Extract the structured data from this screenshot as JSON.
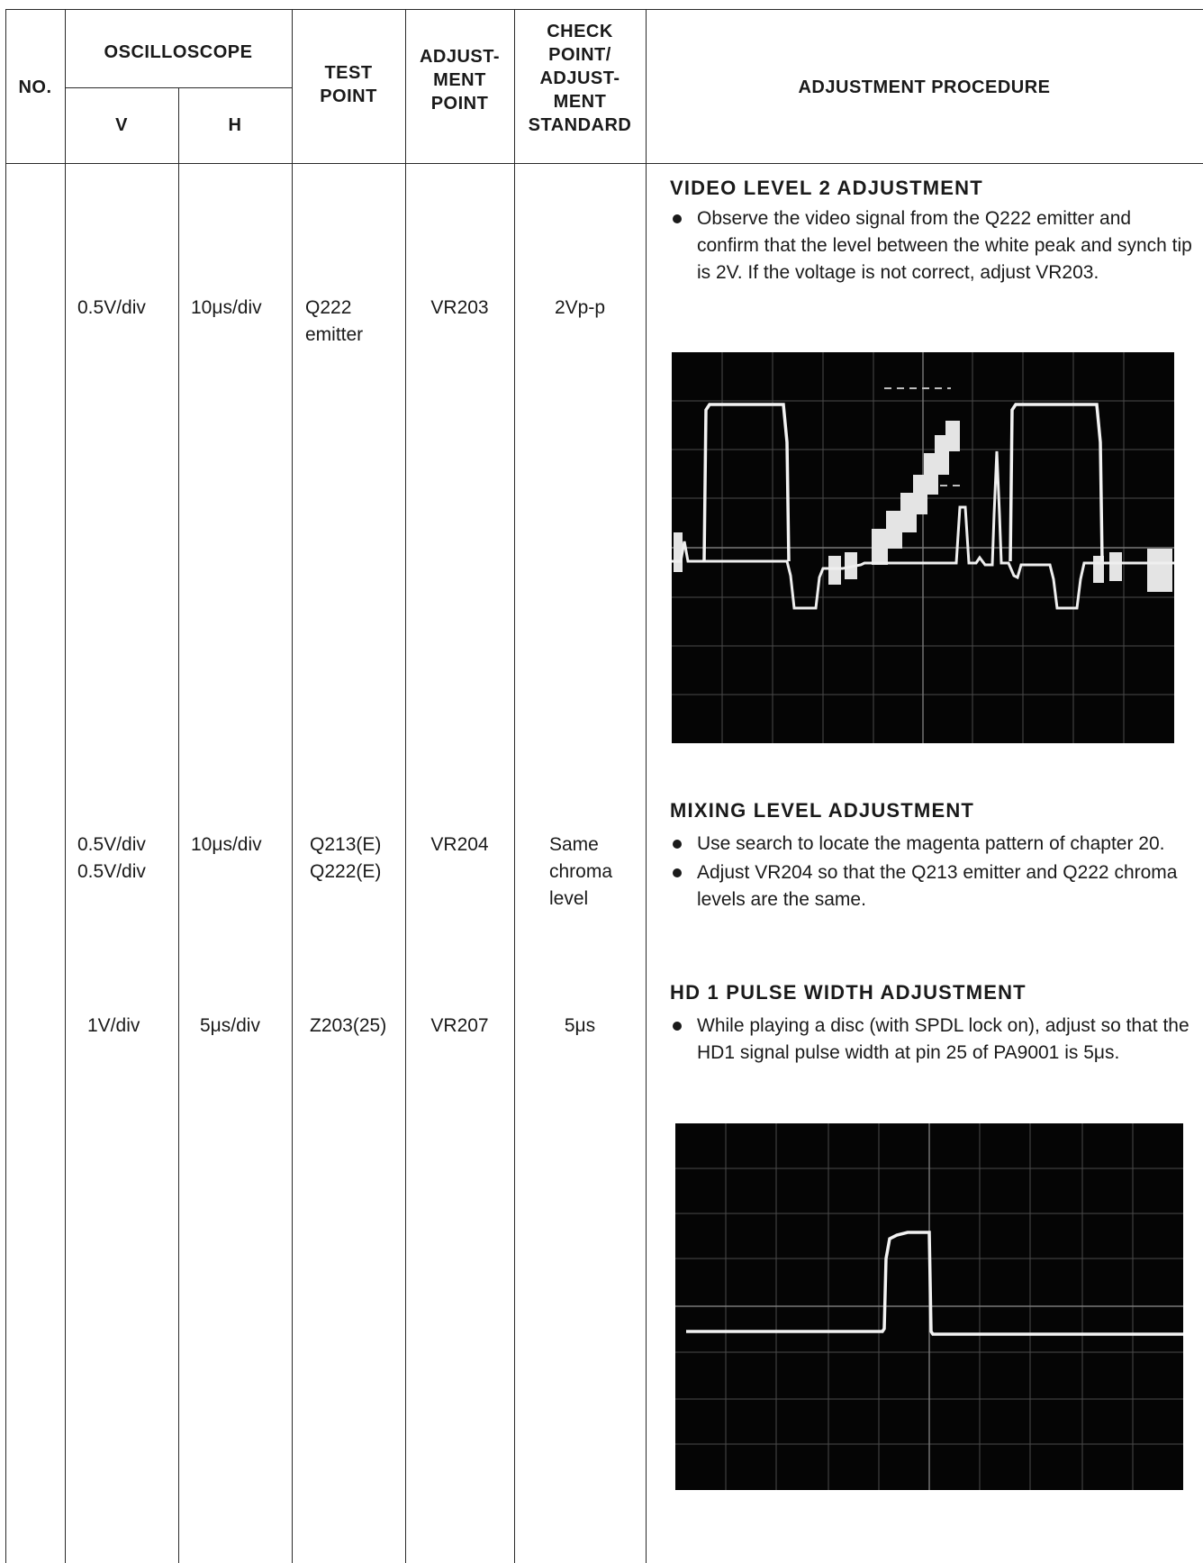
{
  "header": {
    "no": "NO.",
    "oscilloscope": "OSCILLOSCOPE",
    "v": "V",
    "h": "H",
    "test_point": [
      "TEST",
      "POINT"
    ],
    "adjustment_point": [
      "ADJUST-",
      "MENT",
      "POINT"
    ],
    "check_point": [
      "CHECK",
      "POINT/",
      "ADJUST-",
      "MENT",
      "STANDARD"
    ],
    "procedure": "ADJUSTMENT PROCEDURE"
  },
  "rows": [
    {
      "v": "0.5V/div",
      "h": "10μs/div",
      "test_point": [
        "Q222",
        "emitter"
      ],
      "adjust_point": "VR203",
      "standard": [
        "2Vp-p"
      ],
      "title": "VIDEO LEVEL 2 ADJUSTMENT",
      "bullets": [
        "Observe the video signal from the Q222 emitter and confirm that the level between the white peak and synch tip is 2V. If the voltage is not correct, adjust VR203."
      ]
    },
    {
      "v": [
        "0.5V/div",
        "0.5V/div"
      ],
      "h": "10μs/div",
      "test_point": [
        "Q213(E)",
        "Q222(E)"
      ],
      "adjust_point": "VR204",
      "standard": [
        "Same",
        "chroma",
        "level"
      ],
      "title": "MIXING LEVEL ADJUSTMENT",
      "bullets": [
        "Use search to locate the magenta pattern of chapter 20.",
        "Adjust VR204 so that the Q213 emitter and Q222 chroma levels are the same."
      ]
    },
    {
      "v": "1V/div",
      "h": "5μs/div",
      "test_point": [
        "Z203(25)"
      ],
      "adjust_point": "VR207",
      "standard": [
        "5μs"
      ],
      "title": "HD 1 PULSE WIDTH ADJUSTMENT",
      "bullets": [
        "While playing a disc (with SPDL lock on), adjust so that the HD1 signal pulse width at pin 25 of PA9001 is 5μs."
      ]
    }
  ],
  "colors": {
    "ink": "#1a1a1a",
    "scope_bg": "#050505",
    "trace": "#ececec"
  }
}
